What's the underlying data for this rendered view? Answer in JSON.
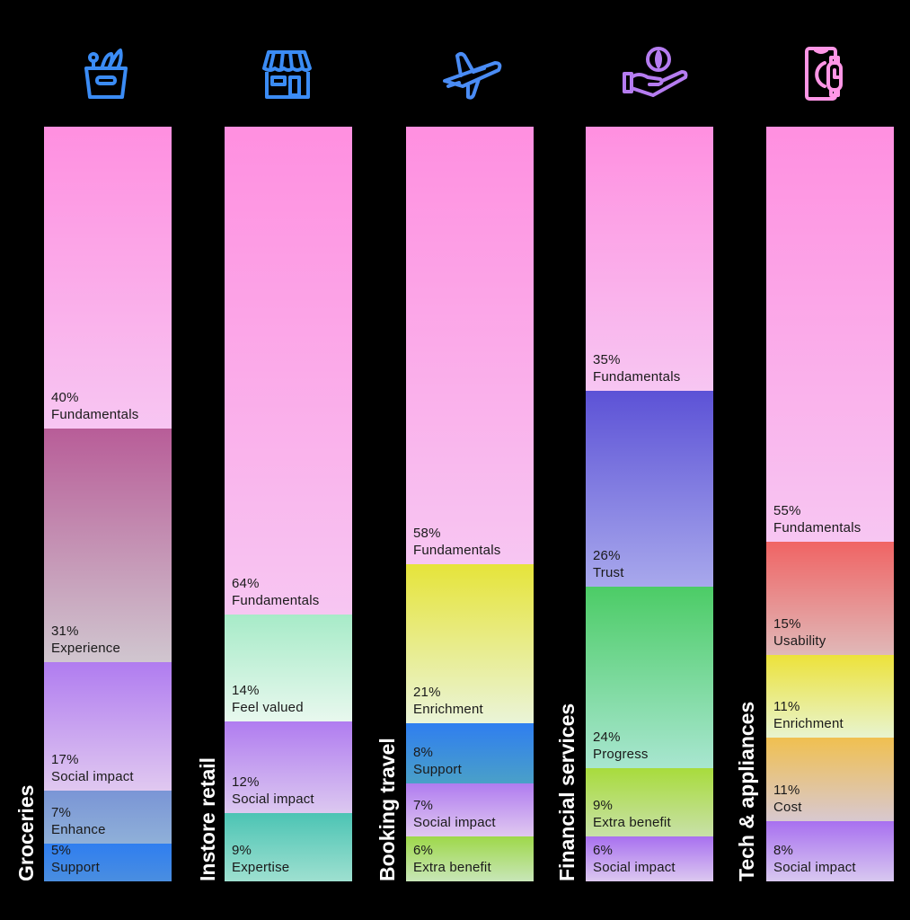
{
  "chart_data": {
    "type": "bar",
    "stacked": true,
    "normalized": true,
    "title": "",
    "xlabel": "",
    "ylabel": "",
    "ylim": [
      0,
      100
    ],
    "grid": false,
    "categories": [
      "Groceries",
      "Instore retail",
      "Booking travel",
      "Financial services",
      "Tech & appliances"
    ],
    "columns": [
      {
        "category": "Groceries",
        "icon": "grocery-basket-icon",
        "icon_color": "#3b8cf5",
        "segments": [
          {
            "label": "Fundamentals",
            "value": 40,
            "pct": "40%",
            "top": "#ff8fe0",
            "bottom": "#f7c6f2"
          },
          {
            "label": "Experience",
            "value": 31,
            "pct": "31%",
            "top": "#b85d98",
            "bottom": "#d0c6cf"
          },
          {
            "label": "Social impact",
            "value": 17,
            "pct": "17%",
            "top": "#b07cf0",
            "bottom": "#e0c8f0"
          },
          {
            "label": "Enhance",
            "value": 7,
            "pct": "7%",
            "top": "#7a95d6",
            "bottom": "#8fb0d8"
          },
          {
            "label": "Support",
            "value": 5,
            "pct": "5%",
            "top": "#2f7ef0",
            "bottom": "#4a8ee0"
          }
        ]
      },
      {
        "category": "Instore retail",
        "icon": "storefront-icon",
        "icon_color": "#3b8cf5",
        "segments": [
          {
            "label": "Fundamentals",
            "value": 64,
            "pct": "64%",
            "top": "#ff8fe0",
            "bottom": "#f7c6f2"
          },
          {
            "label": "Feel valued",
            "value": 14,
            "pct": "14%",
            "top": "#a7ebc8",
            "bottom": "#e8f8ee"
          },
          {
            "label": "Social impact",
            "value": 12,
            "pct": "12%",
            "top": "#b07cf0",
            "bottom": "#dcc8f0"
          },
          {
            "label": "Expertise",
            "value": 9,
            "pct": "9%",
            "top": "#4cc4b4",
            "bottom": "#9ee0d0"
          }
        ]
      },
      {
        "category": "Booking travel",
        "icon": "airplane-icon",
        "icon_color": "#4a8cf5",
        "segments": [
          {
            "label": "Fundamentals",
            "value": 58,
            "pct": "58%",
            "top": "#ff8fe0",
            "bottom": "#f7c6f2"
          },
          {
            "label": "Enrichment",
            "value": 21,
            "pct": "21%",
            "top": "#e6e43a",
            "bottom": "#eaf4d8"
          },
          {
            "label": "Support",
            "value": 8,
            "pct": "8%",
            "top": "#2f7ef0",
            "bottom": "#4aa0c8"
          },
          {
            "label": "Social impact",
            "value": 7,
            "pct": "7%",
            "top": "#b07cf0",
            "bottom": "#e0c8f0"
          },
          {
            "label": "Extra benefit",
            "value": 6,
            "pct": "6%",
            "top": "#9ed84a",
            "bottom": "#c8e6b8"
          }
        ]
      },
      {
        "category": "Financial services",
        "icon": "hand-coin-icon",
        "icon_color": "#b57cf0",
        "segments": [
          {
            "label": "Fundamentals",
            "value": 35,
            "pct": "35%",
            "top": "#ff8fe0",
            "bottom": "#f7c6f2"
          },
          {
            "label": "Trust",
            "value": 26,
            "pct": "26%",
            "top": "#5c52d6",
            "bottom": "#a8a8ec"
          },
          {
            "label": "Progress",
            "value": 24,
            "pct": "24%",
            "top": "#4ccc66",
            "bottom": "#a8e6d0"
          },
          {
            "label": "Extra benefit",
            "value": 9,
            "pct": "9%",
            "top": "#a8dc3c",
            "bottom": "#c8e0a8"
          },
          {
            "label": "Social impact",
            "value": 6,
            "pct": "6%",
            "top": "#a870f0",
            "bottom": "#dcc8f0"
          }
        ]
      },
      {
        "category": "Tech & appliances",
        "icon": "phone-watch-icon",
        "icon_color": "#ff96e6",
        "segments": [
          {
            "label": "Fundamentals",
            "value": 55,
            "pct": "55%",
            "top": "#ff8fe0",
            "bottom": "#f7c6f2"
          },
          {
            "label": "Usability",
            "value": 15,
            "pct": "15%",
            "top": "#f06464",
            "bottom": "#e0b8b8"
          },
          {
            "label": "Enrichment",
            "value": 11,
            "pct": "11%",
            "top": "#ece23a",
            "bottom": "#e8f4d0"
          },
          {
            "label": "Cost",
            "value": 11,
            "pct": "11%",
            "top": "#f0c050",
            "bottom": "#d8c8d0"
          },
          {
            "label": "Social impact",
            "value": 8,
            "pct": "8%",
            "top": "#a870f0",
            "bottom": "#d8c8f0"
          }
        ]
      }
    ]
  }
}
